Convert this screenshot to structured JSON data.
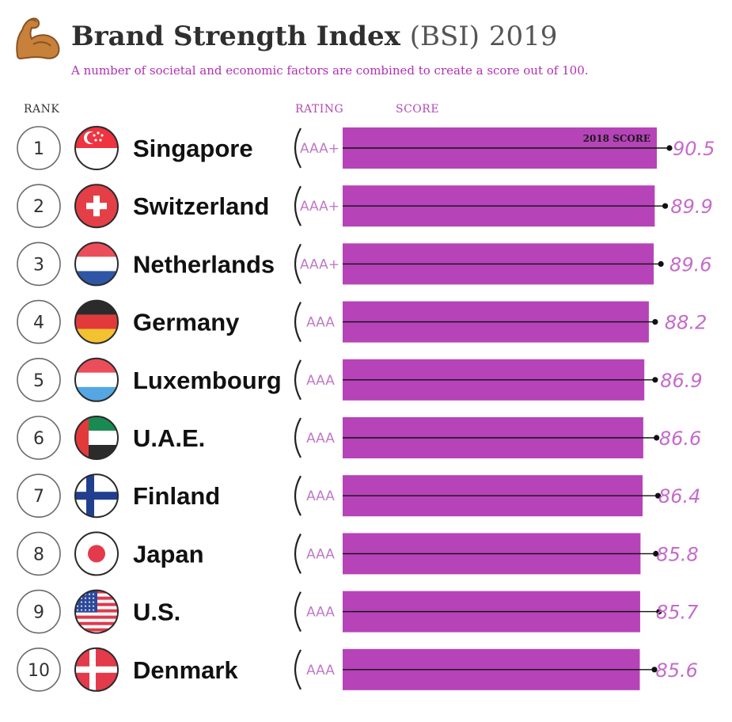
{
  "header": {
    "title_main": "Brand Strength Index",
    "title_paren": "(BSI)",
    "title_year": "2019",
    "subtitle": "A number of societal and economic factors are combined to create a score out of 100.",
    "emoji_icon": "flexed-biceps-icon"
  },
  "columns": {
    "rank": "RANK",
    "rating": "RATING",
    "score": "SCORE"
  },
  "colors": {
    "bar": "#b643b8",
    "value": "#c56bcb",
    "rating": "#c07ac7",
    "subtitle": "#b12fb4"
  },
  "chart_data": {
    "type": "bar",
    "orientation": "horizontal",
    "categories": [
      "Singapore",
      "Switzerland",
      "Netherlands",
      "Germany",
      "Luxembourg",
      "U.A.E.",
      "Finland",
      "Japan",
      "U.S.",
      "Denmark"
    ],
    "ranks": [
      "1",
      "2",
      "3",
      "4",
      "5",
      "6",
      "7",
      "8",
      "9",
      "10"
    ],
    "ratings": [
      "AAA+",
      "AAA+",
      "AAA+",
      "AAA",
      "AAA",
      "AAA",
      "AAA",
      "AAA",
      "AAA",
      "AAA"
    ],
    "flags": [
      "singapore-flag-icon",
      "switzerland-flag-icon",
      "netherlands-flag-icon",
      "germany-flag-icon",
      "luxembourg-flag-icon",
      "uae-flag-icon",
      "finland-flag-icon",
      "japan-flag-icon",
      "us-flag-icon",
      "denmark-flag-icon"
    ],
    "series": [
      {
        "name": "",
        "values": [
          90.5,
          89.9,
          89.6,
          88.2,
          86.9,
          86.6,
          86.4,
          85.8,
          85.7,
          85.6
        ]
      }
    ],
    "score_labels": [
      "90.5",
      "89.9",
      "89.6",
      "88.2",
      "86.9",
      "86.6",
      "86.4",
      "85.8",
      "85.7",
      "85.6"
    ],
    "marker_series": {
      "name": "2018 SCORE",
      "values": [
        91.2,
        90.0,
        88.8,
        87.2,
        87.2,
        87.6,
        88.0,
        87.4,
        88.3,
        87.0
      ]
    },
    "xlim": [
      0,
      100
    ],
    "grid": false,
    "legend": "inline-first-row"
  }
}
